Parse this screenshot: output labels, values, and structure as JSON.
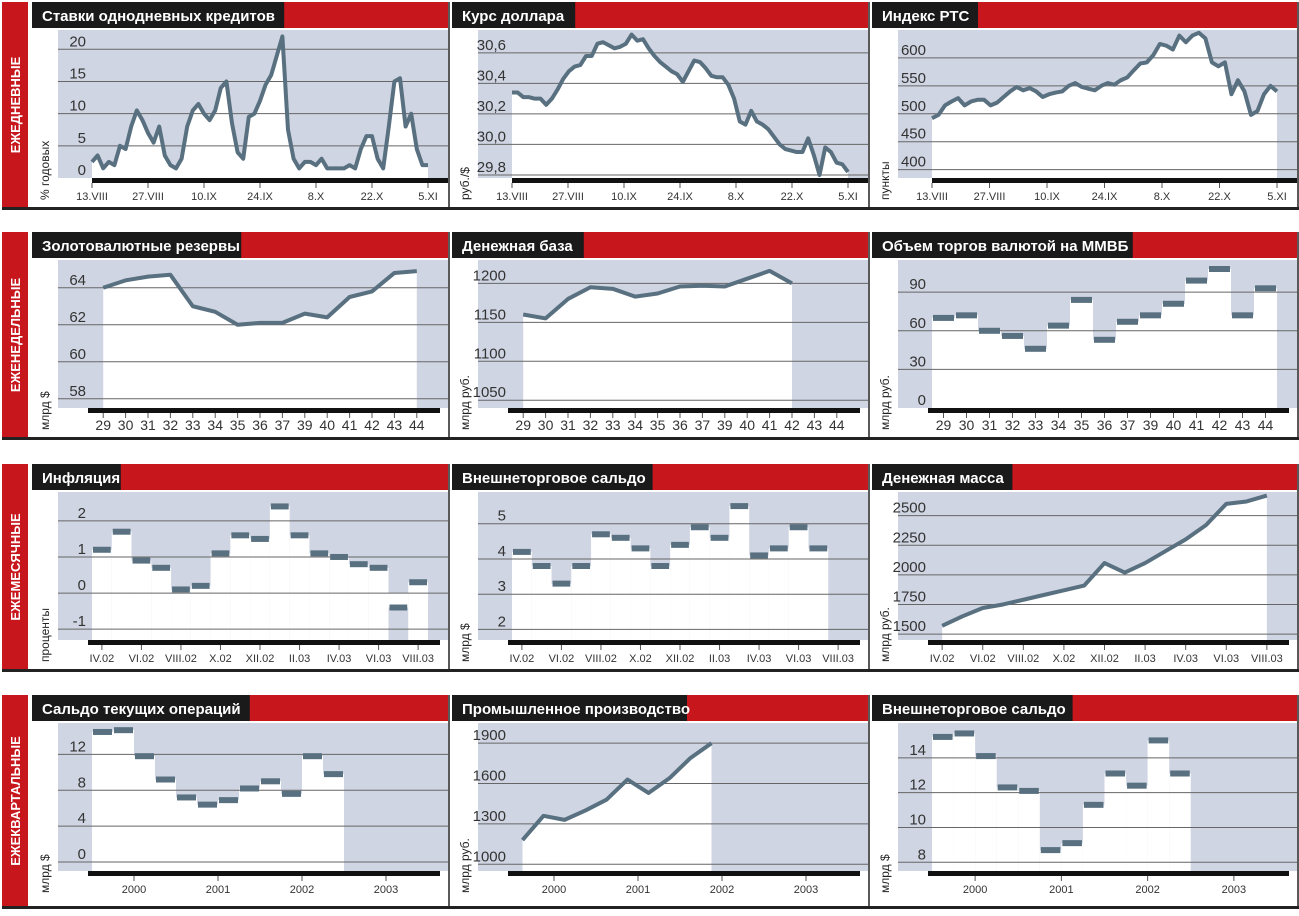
{
  "colors": {
    "accent_red": "#c8161d",
    "plot_bg": "#cfd5e2",
    "series": "#587080",
    "title_bg": "#1a1a1a"
  },
  "rows": [
    {
      "label": "ЕЖЕДНЕВНЫЕ"
    },
    {
      "label": "ЕЖЕНЕДЕЛЬНЫЕ"
    },
    {
      "label": "ЕЖЕМЕСЯЧНЫЕ"
    },
    {
      "label": "ЕЖЕКВАРТАЛЬНЫЕ"
    }
  ],
  "chart_data": [
    {
      "row": 0,
      "col": 0,
      "type": "line",
      "title": "Ставки однодневных кредитов",
      "ylabel": "% годовых",
      "ylim": [
        0,
        23
      ],
      "yticks": [
        0,
        5,
        10,
        15,
        20
      ],
      "xticks": [
        "13.VIII",
        "27.VIII",
        "10.IX",
        "24.IX",
        "8.X",
        "22.X",
        "5.XI"
      ],
      "grid": true,
      "values": [
        2.5,
        3.5,
        1.5,
        2.5,
        2,
        5,
        4.5,
        8,
        10.5,
        9,
        7,
        5.5,
        8,
        3.5,
        2,
        1.5,
        3,
        8,
        10.5,
        11.5,
        10,
        9,
        10.5,
        14,
        15,
        8.5,
        4,
        3,
        9.5,
        10,
        12,
        14.5,
        16,
        19,
        22,
        7.5,
        3,
        1.5,
        2.5,
        2.5,
        2,
        3,
        1.5,
        1.5,
        1.5,
        1.5,
        2,
        1.5,
        4.5,
        6.5,
        6.5,
        3,
        1.5,
        8,
        15,
        15.5,
        8,
        10,
        4.5,
        2,
        2
      ]
    },
    {
      "row": 0,
      "col": 1,
      "type": "line",
      "title": "Курс доллара",
      "ylabel": "руб./$",
      "ylim": [
        29.78,
        30.75
      ],
      "yticks": [
        "29,8",
        "30,0",
        "30,2",
        "30,4",
        "30,6"
      ],
      "ytick_values": [
        29.8,
        30.0,
        30.2,
        30.4,
        30.6
      ],
      "xticks": [
        "13.VIII",
        "27.VIII",
        "10.IX",
        "24.IX",
        "8.X",
        "22.X",
        "5.XI"
      ],
      "grid": true,
      "values": [
        30.34,
        30.34,
        30.31,
        30.31,
        30.3,
        30.3,
        30.26,
        30.3,
        30.36,
        30.43,
        30.48,
        30.51,
        30.52,
        30.58,
        30.58,
        30.66,
        30.67,
        30.65,
        30.63,
        30.64,
        30.66,
        30.72,
        30.68,
        30.69,
        30.63,
        30.58,
        30.54,
        30.51,
        30.48,
        30.46,
        30.41,
        30.48,
        30.55,
        30.54,
        30.5,
        30.45,
        30.44,
        30.44,
        30.39,
        30.3,
        30.15,
        30.13,
        30.22,
        30.15,
        30.13,
        30.1,
        30.05,
        30.0,
        29.97,
        29.96,
        29.95,
        29.95,
        30.04,
        29.93,
        29.8,
        29.98,
        29.95,
        29.88,
        29.87,
        29.82
      ]
    },
    {
      "row": 0,
      "col": 2,
      "type": "line",
      "title": "Индекс РТС",
      "ylabel": "пункты",
      "ylim": [
        385,
        650
      ],
      "yticks": [
        400,
        450,
        500,
        550,
        600
      ],
      "xticks": [
        "13.VIII",
        "27.VIII",
        "10.IX",
        "24.IX",
        "8.X",
        "22.X",
        "5.XI"
      ],
      "grid": true,
      "values": [
        492,
        498,
        515,
        522,
        528,
        515,
        522,
        525,
        525,
        515,
        520,
        530,
        540,
        548,
        542,
        546,
        540,
        530,
        535,
        538,
        540,
        550,
        555,
        548,
        545,
        542,
        550,
        555,
        552,
        560,
        565,
        578,
        590,
        592,
        605,
        625,
        622,
        615,
        640,
        628,
        640,
        645,
        635,
        592,
        585,
        592,
        535,
        560,
        540,
        498,
        505,
        535,
        550,
        540
      ]
    },
    {
      "row": 1,
      "col": 0,
      "type": "line",
      "title": "Золотовалютные резервы",
      "ylabel": "млрд $",
      "ylim": [
        57.5,
        65.5
      ],
      "yticks": [
        58,
        60,
        62,
        64
      ],
      "xticks": [
        "29",
        "30",
        "31",
        "32",
        "33",
        "34",
        "35",
        "36",
        "37",
        "39",
        "40",
        "41",
        "42",
        "43",
        "44"
      ],
      "grid": true,
      "values": [
        64,
        64.4,
        64.6,
        64.7,
        63,
        62.7,
        62,
        62.1,
        62.1,
        62.6,
        62.4,
        63.5,
        63.8,
        64.8,
        64.9
      ]
    },
    {
      "row": 1,
      "col": 1,
      "type": "line",
      "title": "Денежная база",
      "ylabel": "млрд руб.",
      "ylim": [
        1040,
        1230
      ],
      "yticks": [
        1050,
        1100,
        1150,
        1200
      ],
      "xticks": [
        "29",
        "30",
        "31",
        "32",
        "33",
        "34",
        "35",
        "36",
        "37",
        "39",
        "40",
        "41",
        "42",
        "43",
        "44"
      ],
      "grid": true,
      "values": [
        1160,
        1155,
        1180,
        1195,
        1193,
        1183,
        1187,
        1196,
        1197,
        1196,
        1206,
        1216,
        1200
      ]
    },
    {
      "row": 1,
      "col": 2,
      "type": "step",
      "title": "Объем торгов валютой на ММВБ",
      "ylabel": "млрд руб.",
      "ylim": [
        0,
        115
      ],
      "yticks": [
        0,
        30,
        60,
        90
      ],
      "xticks": [
        "29",
        "30",
        "31",
        "32",
        "33",
        "34",
        "35",
        "36",
        "37",
        "39",
        "40",
        "41",
        "42",
        "43",
        "44"
      ],
      "grid": true,
      "values": [
        70,
        72,
        60,
        56,
        46,
        64,
        84,
        53,
        67,
        72,
        81,
        99,
        108,
        72,
        93
      ]
    },
    {
      "row": 2,
      "col": 0,
      "type": "step",
      "title": "Инфляция",
      "ylabel": "проценты",
      "ylim": [
        -1.3,
        2.8
      ],
      "yticks": [
        -1,
        0,
        1,
        2
      ],
      "xticks": [
        "IV.02",
        "VI.02",
        "VIII.02",
        "X.02",
        "XII.02",
        "II.03",
        "IV.03",
        "VI.03",
        "VIII.03"
      ],
      "grid": true,
      "values": [
        1.2,
        1.7,
        0.9,
        0.7,
        0.1,
        0.2,
        1.1,
        1.6,
        1.5,
        2.4,
        1.6,
        1.1,
        1.0,
        0.8,
        0.7,
        -0.4,
        0.3
      ]
    },
    {
      "row": 2,
      "col": 1,
      "type": "step",
      "title": "Внешнеторговое сальдо",
      "ylabel": "млрд $",
      "ylim": [
        1.7,
        5.9
      ],
      "yticks": [
        2,
        3,
        4,
        5
      ],
      "xticks": [
        "IV.02",
        "VI.02",
        "VIII.02",
        "X.02",
        "XII.02",
        "II.03",
        "IV.03",
        "VI.03",
        "VIII.03"
      ],
      "grid": true,
      "values": [
        4.2,
        3.8,
        3.3,
        3.8,
        4.7,
        4.6,
        4.3,
        3.8,
        4.4,
        4.9,
        4.6,
        5.5,
        4.1,
        4.3,
        4.9,
        4.3
      ]
    },
    {
      "row": 2,
      "col": 2,
      "type": "line",
      "title": "Денежная масса",
      "ylabel": "млрд руб.",
      "ylim": [
        1450,
        2700
      ],
      "yticks": [
        1500,
        1750,
        2000,
        2250,
        2500
      ],
      "xticks": [
        "IV.02",
        "VI.02",
        "VIII.02",
        "X.02",
        "XII.02",
        "II.03",
        "IV.03",
        "VI.03",
        "VIII.03"
      ],
      "grid": true,
      "values": [
        1570,
        1650,
        1720,
        1750,
        1790,
        1830,
        1870,
        1910,
        2100,
        2020,
        2100,
        2200,
        2300,
        2420,
        2600,
        2620,
        2670
      ]
    },
    {
      "row": 3,
      "col": 0,
      "type": "step",
      "title": "Сальдо текущих операций",
      "ylabel": "млрд $",
      "ylim": [
        -1,
        15.5
      ],
      "yticks": [
        0,
        4,
        8,
        12
      ],
      "xticks": [
        "2000",
        "2001",
        "2002",
        "2003"
      ],
      "grid": true,
      "values": [
        14.5,
        14.7,
        11.8,
        9.2,
        7.2,
        6.4,
        6.9,
        8.2,
        9.0,
        7.6,
        11.8,
        9.8
      ]
    },
    {
      "row": 3,
      "col": 1,
      "type": "line",
      "title": "Промышленное производство",
      "ylabel": "млрд руб.",
      "ylim": [
        950,
        2050
      ],
      "yticks": [
        1000,
        1300,
        1600,
        1900
      ],
      "xticks": [
        "2000",
        "2001",
        "2002",
        "2003"
      ],
      "grid": true,
      "values": [
        1180,
        1360,
        1330,
        1400,
        1480,
        1630,
        1530,
        1640,
        1790,
        1900
      ]
    },
    {
      "row": 3,
      "col": 2,
      "type": "step",
      "title": "Внешнеторговое сальдо",
      "ylabel": "млрд $",
      "ylim": [
        7.5,
        16
      ],
      "yticks": [
        8,
        10,
        12,
        14
      ],
      "xticks": [
        "2000",
        "2001",
        "2002",
        "2003"
      ],
      "grid": true,
      "values": [
        15.2,
        15.4,
        14.1,
        12.3,
        12.1,
        8.7,
        9.1,
        11.3,
        13.1,
        12.4,
        15.0,
        13.1
      ]
    }
  ]
}
